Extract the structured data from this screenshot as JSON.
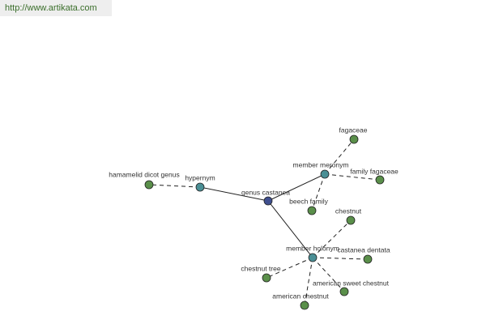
{
  "header": {
    "url": "http://www.artikata.com"
  },
  "nodes": [
    {
      "label": "genus castanea"
    },
    {
      "label": "hypernym"
    },
    {
      "label": "hamamelid dicot genus"
    },
    {
      "label": "member meronym"
    },
    {
      "label": "fagaceae"
    },
    {
      "label": "family fagaceae"
    },
    {
      "label": "beech family"
    },
    {
      "label": "member holonym"
    },
    {
      "label": "chestnut"
    },
    {
      "label": "castanea dentata"
    },
    {
      "label": "chestnut tree"
    },
    {
      "label": "american sweet chestnut"
    },
    {
      "label": "american chestnut"
    }
  ]
}
